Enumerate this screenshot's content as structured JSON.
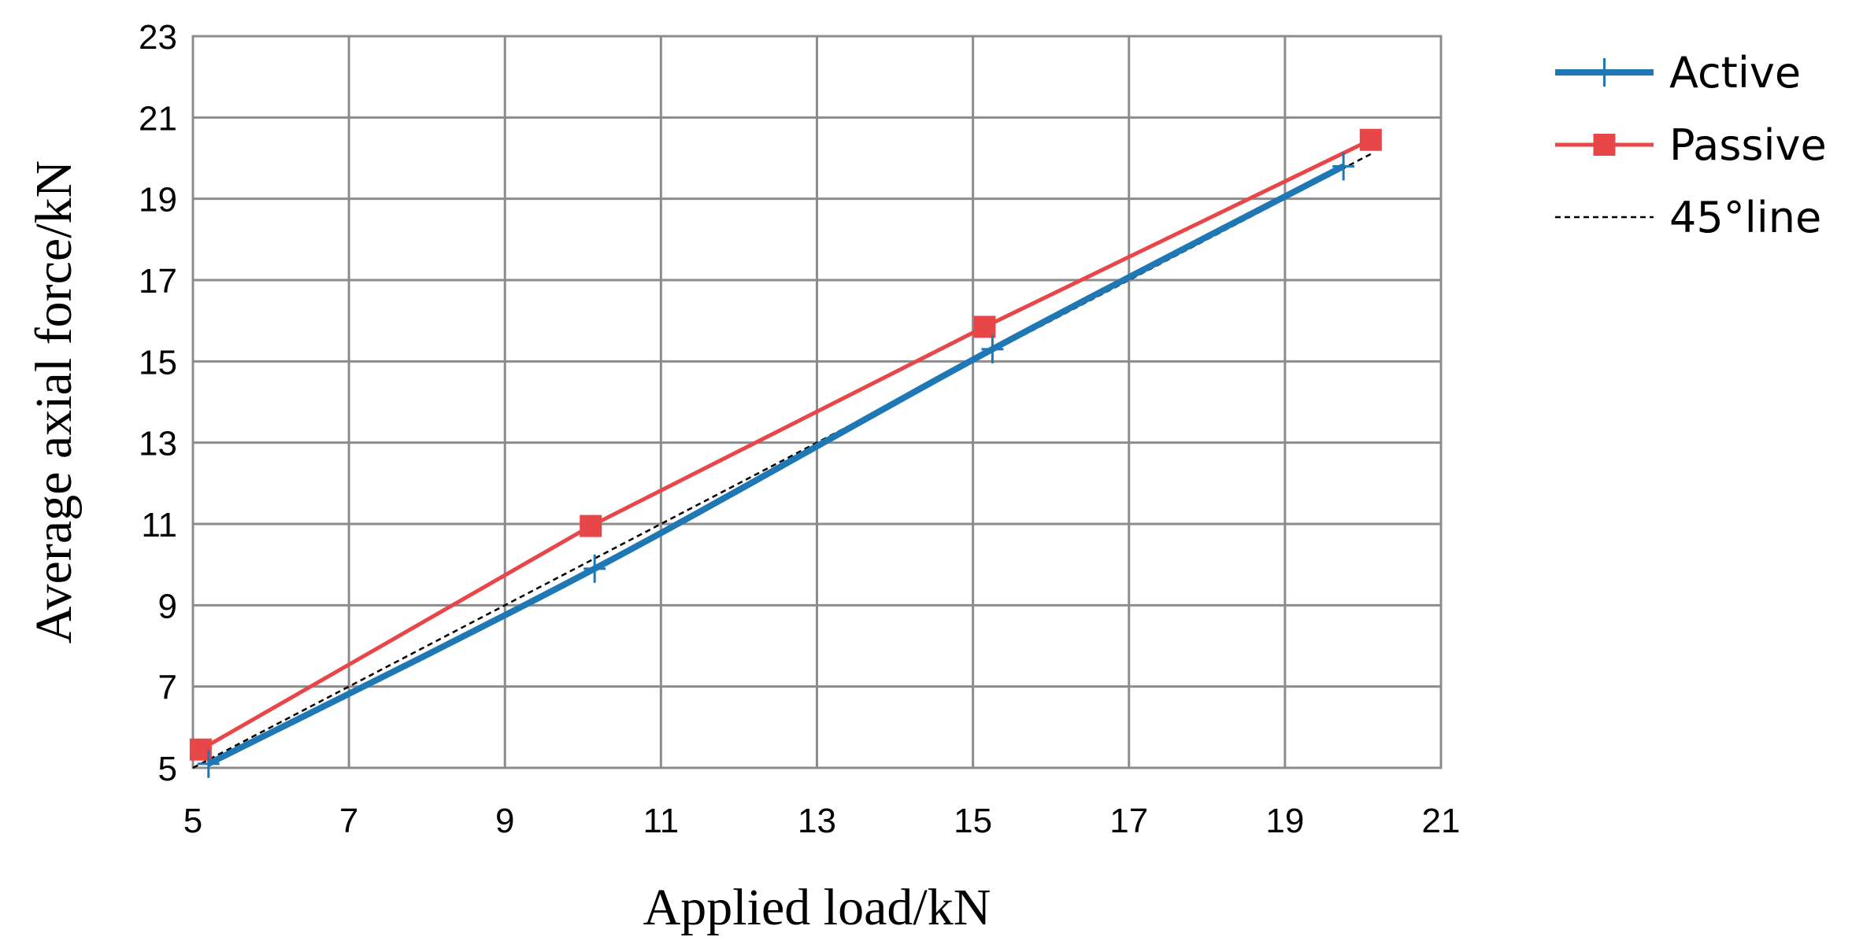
{
  "chart_data": {
    "type": "line",
    "xlabel": "Applied load/kN",
    "ylabel": "Average axial force/kN",
    "xlim": [
      5,
      21
    ],
    "ylim": [
      5,
      23
    ],
    "xticks": [
      "5",
      "7",
      "9",
      "11",
      "13",
      "15",
      "17",
      "19",
      "21"
    ],
    "yticks": [
      "5",
      "7",
      "9",
      "11",
      "13",
      "15",
      "17",
      "19",
      "21",
      "23"
    ],
    "grid": true,
    "legend_position": "right",
    "series": [
      {
        "name": "Active",
        "color": "#1f77b4",
        "marker": "plus",
        "smooth": true,
        "x": [
          5.2,
          10.15,
          15.25,
          19.75
        ],
        "y": [
          5.1,
          9.9,
          15.3,
          19.8
        ]
      },
      {
        "name": "Passive",
        "color": "#e8474a",
        "marker": "square",
        "smooth": false,
        "x": [
          5.1,
          10.1,
          15.15,
          20.1
        ],
        "y": [
          5.45,
          10.95,
          15.85,
          20.45
        ]
      },
      {
        "name": "45°line",
        "color": "#000000",
        "marker": "none",
        "dashed": true,
        "x": [
          5.0,
          20.1
        ],
        "y": [
          5.0,
          20.1
        ]
      }
    ]
  }
}
